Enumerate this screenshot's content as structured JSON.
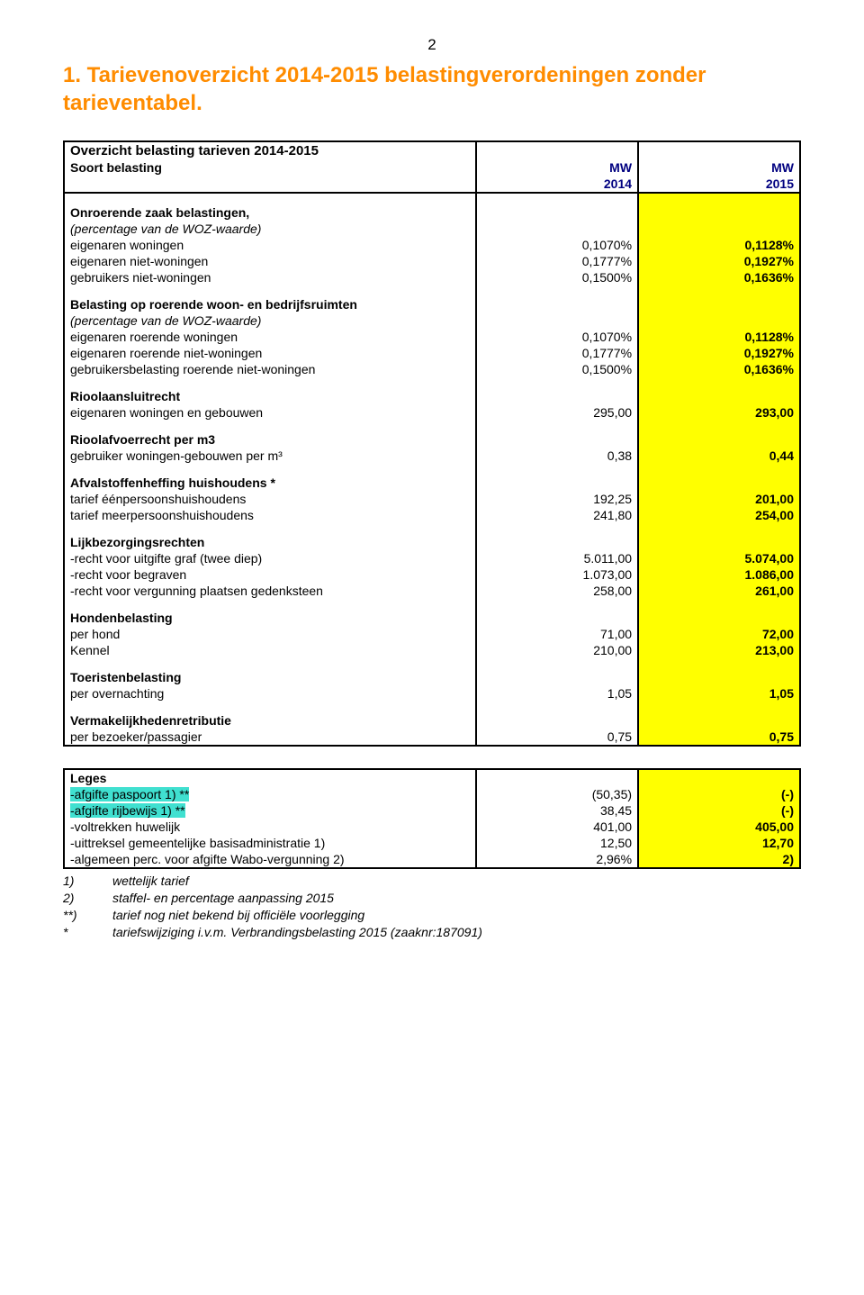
{
  "page_number": "2",
  "title": "1. Tarievenoverzicht 2014-2015 belastingverordeningen zonder tarieventabel.",
  "table_header": {
    "heading": "Overzicht belasting tarieven 2014-2015",
    "soort": "Soort belasting",
    "col1_top": "MW",
    "col1_bot": "2014",
    "col2_top": "MW",
    "col2_bot": "2015"
  },
  "sec_ozb": {
    "title": "Onroerende zaak belastingen,",
    "sub": "(percentage van de WOZ-waarde)",
    "rows": [
      {
        "l": "eigenaren woningen",
        "a": "0,1070%",
        "b": "0,1128%"
      },
      {
        "l": "eigenaren niet-woningen",
        "a": "0,1777%",
        "b": "0,1927%"
      },
      {
        "l": "gebruikers niet-woningen",
        "a": "0,1500%",
        "b": "0,1636%"
      }
    ]
  },
  "sec_roerend": {
    "title": "Belasting op roerende woon- en bedrijfsruimten",
    "sub": "(percentage van de WOZ-waarde)",
    "rows": [
      {
        "l": "eigenaren roerende woningen",
        "a": "0,1070%",
        "b": "0,1128%"
      },
      {
        "l": "eigenaren roerende niet-woningen",
        "a": "0,1777%",
        "b": "0,1927%"
      },
      {
        "l": "gebruikersbelasting roerende niet-woningen",
        "a": "0,1500%",
        "b": "0,1636%"
      }
    ]
  },
  "sec_riool_a": {
    "title": "Rioolaansluitrecht",
    "rows": [
      {
        "l": "eigenaren woningen en gebouwen",
        "a": "295,00",
        "b": "293,00"
      }
    ]
  },
  "sec_riool_b": {
    "title": "Rioolafvoerrecht per m3",
    "rows": [
      {
        "l": "gebruiker woningen-gebouwen per m³",
        "a": "0,38",
        "b": "0,44"
      }
    ]
  },
  "sec_afval": {
    "title": "Afvalstoffenheffing huishoudens *",
    "rows": [
      {
        "l": "tarief éénpersoonshuishoudens",
        "a": "192,25",
        "b": "201,00"
      },
      {
        "l": "tarief meerpersoonshuishoudens",
        "a": "241,80",
        "b": "254,00"
      }
    ]
  },
  "sec_lijk": {
    "title": "Lijkbezorgingsrechten",
    "rows": [
      {
        "l": "-recht voor uitgifte graf (twee diep)",
        "a": "5.011,00",
        "b": "5.074,00"
      },
      {
        "l": "-recht voor begraven",
        "a": "1.073,00",
        "b": "1.086,00"
      },
      {
        "l": "-recht voor vergunning plaatsen gedenksteen",
        "a": "258,00",
        "b": "261,00"
      }
    ]
  },
  "sec_hond": {
    "title": "Hondenbelasting",
    "rows": [
      {
        "l": "per hond",
        "a": "71,00",
        "b": "72,00"
      },
      {
        "l": "Kennel",
        "a": "210,00",
        "b": "213,00"
      }
    ]
  },
  "sec_toer": {
    "title": "Toeristenbelasting",
    "rows": [
      {
        "l": "per overnachting",
        "a": "1,05",
        "b": "1,05"
      }
    ]
  },
  "sec_verm": {
    "title": "Vermakelijkhedenretributie",
    "rows": [
      {
        "l": "per bezoeker/passagier",
        "a": "0,75",
        "b": "0,75"
      }
    ]
  },
  "sec_leges": {
    "title": "Leges",
    "rows": [
      {
        "l": "-afgifte paspoort 1) **",
        "a": "(50,35)",
        "b": "(-)",
        "cyan": true
      },
      {
        "l": "-afgifte rijbewijs 1) **",
        "a": "38,45",
        "b": "(-)",
        "cyan": true
      },
      {
        "l": "-voltrekken huwelijk",
        "a": "401,00",
        "b": "405,00"
      },
      {
        "l": "-uittreksel gemeentelijke basisadministratie 1)",
        "a": "12,50",
        "b": "12,70"
      },
      {
        "l": "-algemeen perc. voor afgifte Wabo-vergunning 2)",
        "a": "2,96%",
        "b": "2)"
      }
    ]
  },
  "notes": [
    {
      "k": "1)",
      "v": "wettelijk tarief"
    },
    {
      "k": "2)",
      "v": "staffel- en percentage aanpassing 2015"
    },
    {
      "k": "**)",
      "v": "tarief nog niet bekend bij officiële voorlegging"
    },
    {
      "k": "*",
      "v": "tariefswijziging i.v.m. Verbrandingsbelasting 2015 (zaaknr:187091)"
    }
  ],
  "colors": {
    "orange": "#ff8c00",
    "yellow": "#ffff00",
    "cyan": "#40e0d0",
    "navy": "#000080"
  }
}
